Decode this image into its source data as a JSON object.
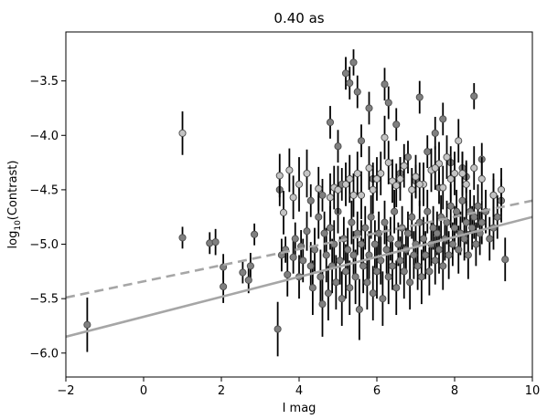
{
  "chart_data": {
    "type": "scatter",
    "title": "0.40 as",
    "xlabel": "I mag",
    "ylabel_main": "log",
    "ylabel_sub": "10",
    "ylabel_rest": "(Contrast)",
    "xlim": [
      -2,
      10
    ],
    "ylim": [
      -6.22,
      -3.05
    ],
    "xticks": [
      -2,
      0,
      2,
      4,
      6,
      8,
      10
    ],
    "yticks": [
      -6.0,
      -5.5,
      -5.0,
      -4.5,
      -4.0,
      -3.5
    ],
    "xtick_labels": [
      "−2",
      "0",
      "2",
      "4",
      "6",
      "8",
      "10"
    ],
    "ytick_labels": [
      "−6.0",
      "−5.5",
      "−5.0",
      "−4.5",
      "−4.0",
      "−3.5"
    ],
    "grid": false,
    "colors": {
      "marker_gray": "#808080",
      "marker_light": "#c4c4c4",
      "marker_edge": "#4a4a4a",
      "errorbar": "#000000",
      "fit_line": "#a6a6a6"
    },
    "lines": [
      {
        "style": "solid",
        "x": [
          -2,
          10
        ],
        "y": [
          -5.85,
          -4.75
        ]
      },
      {
        "style": "dashed",
        "x": [
          -2,
          10
        ],
        "y": [
          -5.49,
          -4.6
        ]
      }
    ],
    "series": [
      {
        "marker": "gray",
        "x": [
          -1.45,
          1.0,
          1.7,
          1.85,
          2.05,
          2.05,
          2.55,
          2.7,
          2.75,
          2.85,
          3.45,
          3.55,
          3.65,
          3.7,
          3.85,
          3.9,
          4.0,
          4.05,
          4.1,
          4.2,
          4.3,
          4.35,
          4.4,
          4.5,
          4.55,
          4.6,
          4.65,
          4.7,
          4.75,
          4.8,
          4.85,
          4.9,
          4.95,
          5.0,
          5.05,
          5.1,
          5.15,
          5.2,
          5.25,
          5.3,
          5.35,
          5.4,
          5.45,
          5.5,
          5.55,
          5.6,
          5.65,
          5.7,
          5.75,
          5.8,
          5.85,
          5.9,
          5.95,
          6.0,
          6.05,
          6.1,
          6.15,
          6.2,
          6.25,
          6.3,
          6.35,
          6.4,
          6.45,
          6.5,
          6.55,
          6.6,
          6.65,
          6.7,
          6.75,
          6.8,
          6.85,
          6.9,
          6.95,
          7.0,
          7.05,
          7.1,
          7.15,
          7.2,
          7.25,
          7.3,
          7.35,
          7.4,
          7.45,
          7.5,
          7.55,
          7.6,
          7.65,
          7.7,
          7.75,
          7.8,
          7.85,
          7.9,
          7.95,
          8.0,
          8.05,
          8.1,
          8.15,
          8.2,
          8.25,
          8.3,
          8.35,
          8.4,
          8.45,
          8.5,
          8.55,
          8.6,
          8.65,
          8.7,
          8.8,
          8.9,
          9.0,
          9.1,
          9.2,
          9.3,
          5.2,
          5.3,
          5.4,
          5.5,
          5.8,
          6.2,
          6.3,
          6.5,
          7.1,
          7.5,
          7.7,
          8.5,
          4.8,
          5.0,
          5.6,
          6.8,
          7.3,
          7.9,
          8.2,
          8.7,
          3.5,
          4.3,
          4.6,
          5.1,
          5.9,
          6.6,
          7.0,
          7.6,
          8.3,
          9.0
        ],
        "y": [
          -5.74,
          -4.94,
          -4.99,
          -4.98,
          -5.21,
          -5.39,
          -5.26,
          -5.33,
          -5.2,
          -4.91,
          -5.78,
          -5.1,
          -5.05,
          -5.28,
          -5.12,
          -4.95,
          -5.3,
          -5.02,
          -5.15,
          -4.88,
          -5.2,
          -5.4,
          -5.05,
          -4.75,
          -5.3,
          -5.55,
          -4.9,
          -5.1,
          -5.45,
          -4.85,
          -5.2,
          -5.0,
          -5.35,
          -4.7,
          -5.15,
          -5.5,
          -4.95,
          -5.25,
          -5.05,
          -5.4,
          -4.8,
          -5.1,
          -5.3,
          -4.9,
          -5.6,
          -5.0,
          -5.2,
          -4.85,
          -5.35,
          -5.1,
          -4.75,
          -5.45,
          -5.0,
          -5.25,
          -4.9,
          -5.15,
          -5.5,
          -4.8,
          -5.05,
          -5.3,
          -4.95,
          -5.2,
          -4.7,
          -5.4,
          -5.0,
          -5.15,
          -4.85,
          -5.25,
          -5.05,
          -4.9,
          -5.35,
          -4.75,
          -5.1,
          -5.0,
          -5.2,
          -4.8,
          -5.3,
          -4.95,
          -5.1,
          -4.7,
          -5.25,
          -5.0,
          -4.85,
          -5.15,
          -4.9,
          -5.05,
          -4.75,
          -5.2,
          -4.95,
          -4.8,
          -5.1,
          -4.65,
          -5.0,
          -4.85,
          -4.7,
          -5.05,
          -4.9,
          -4.6,
          -4.95,
          -4.8,
          -5.1,
          -4.7,
          -4.85,
          -4.75,
          -5.0,
          -4.65,
          -4.9,
          -4.8,
          -4.7,
          -4.95,
          -4.85,
          -4.75,
          -4.6,
          -5.14,
          -3.43,
          -3.52,
          -3.33,
          -3.6,
          -3.75,
          -3.53,
          -3.7,
          -3.9,
          -3.65,
          -3.98,
          -3.85,
          -3.64,
          -3.88,
          -4.1,
          -4.05,
          -4.2,
          -4.15,
          -4.25,
          -4.3,
          -4.22,
          -4.5,
          -4.6,
          -4.55,
          -4.45,
          -4.4,
          -4.35,
          -4.42,
          -4.48,
          -4.38,
          -4.55
        ],
        "yerr": [
          0.25,
          0.1,
          0.1,
          0.12,
          0.12,
          0.15,
          0.1,
          0.12,
          0.12,
          0.1,
          0.25,
          0.15,
          0.12,
          0.2,
          0.15,
          0.15,
          0.2,
          0.15,
          0.2,
          0.18,
          0.22,
          0.25,
          0.2,
          0.2,
          0.25,
          0.3,
          0.2,
          0.25,
          0.25,
          0.2,
          0.25,
          0.22,
          0.25,
          0.2,
          0.22,
          0.25,
          0.2,
          0.25,
          0.2,
          0.25,
          0.2,
          0.22,
          0.25,
          0.2,
          0.28,
          0.22,
          0.25,
          0.2,
          0.25,
          0.22,
          0.2,
          0.25,
          0.22,
          0.25,
          0.2,
          0.22,
          0.25,
          0.2,
          0.22,
          0.25,
          0.2,
          0.22,
          0.2,
          0.25,
          0.2,
          0.22,
          0.2,
          0.25,
          0.2,
          0.2,
          0.25,
          0.2,
          0.22,
          0.2,
          0.22,
          0.2,
          0.25,
          0.2,
          0.22,
          0.2,
          0.22,
          0.2,
          0.2,
          0.22,
          0.2,
          0.22,
          0.2,
          0.22,
          0.2,
          0.2,
          0.22,
          0.2,
          0.2,
          0.2,
          0.2,
          0.22,
          0.2,
          0.2,
          0.2,
          0.2,
          0.22,
          0.2,
          0.2,
          0.2,
          0.2,
          0.2,
          0.2,
          0.2,
          0.2,
          0.2,
          0.2,
          0.2,
          0.2,
          0.2,
          0.15,
          0.15,
          0.12,
          0.15,
          0.15,
          0.15,
          0.15,
          0.15,
          0.15,
          0.15,
          0.15,
          0.12,
          0.15,
          0.15,
          0.15,
          0.15,
          0.15,
          0.15,
          0.15,
          0.15,
          0.15,
          0.15,
          0.15,
          0.15,
          0.15,
          0.15,
          0.15,
          0.15,
          0.15,
          0.15
        ]
      },
      {
        "marker": "light",
        "x": [
          1.0,
          3.5,
          3.6,
          3.75,
          3.85,
          4.0,
          4.2,
          4.5,
          4.8,
          4.9,
          5.0,
          5.2,
          5.3,
          5.5,
          5.6,
          5.8,
          5.9,
          6.0,
          6.1,
          6.2,
          6.4,
          6.5,
          6.7,
          6.9,
          7.0,
          7.2,
          7.4,
          7.6,
          7.7,
          7.8,
          7.9,
          8.0,
          8.1,
          8.3,
          8.5,
          8.7,
          9.0,
          9.2,
          5.4,
          6.3,
          7.1,
          7.5,
          8.2,
          6.6
        ],
        "y": [
          -3.98,
          -4.37,
          -4.71,
          -4.32,
          -4.57,
          -4.45,
          -4.35,
          -4.49,
          -4.57,
          -4.48,
          -4.5,
          -4.45,
          -4.4,
          -4.35,
          -4.55,
          -4.3,
          -4.5,
          -4.4,
          -4.35,
          -4.02,
          -4.42,
          -4.46,
          -4.28,
          -4.5,
          -4.38,
          -4.45,
          -4.32,
          -4.26,
          -4.48,
          -4.2,
          -4.4,
          -4.35,
          -4.05,
          -4.45,
          -4.3,
          -4.4,
          -4.55,
          -4.5,
          -4.55,
          -4.25,
          -4.45,
          -4.3,
          -4.35,
          -4.4
        ],
        "yerr": [
          0.2,
          0.2,
          0.2,
          0.2,
          0.2,
          0.25,
          0.22,
          0.2,
          0.22,
          0.2,
          0.22,
          0.2,
          0.22,
          0.2,
          0.22,
          0.2,
          0.22,
          0.2,
          0.2,
          0.2,
          0.2,
          0.2,
          0.2,
          0.2,
          0.2,
          0.2,
          0.2,
          0.2,
          0.2,
          0.2,
          0.2,
          0.2,
          0.2,
          0.2,
          0.2,
          0.2,
          0.2,
          0.2,
          0.2,
          0.2,
          0.2,
          0.2,
          0.2,
          0.2
        ]
      }
    ]
  }
}
